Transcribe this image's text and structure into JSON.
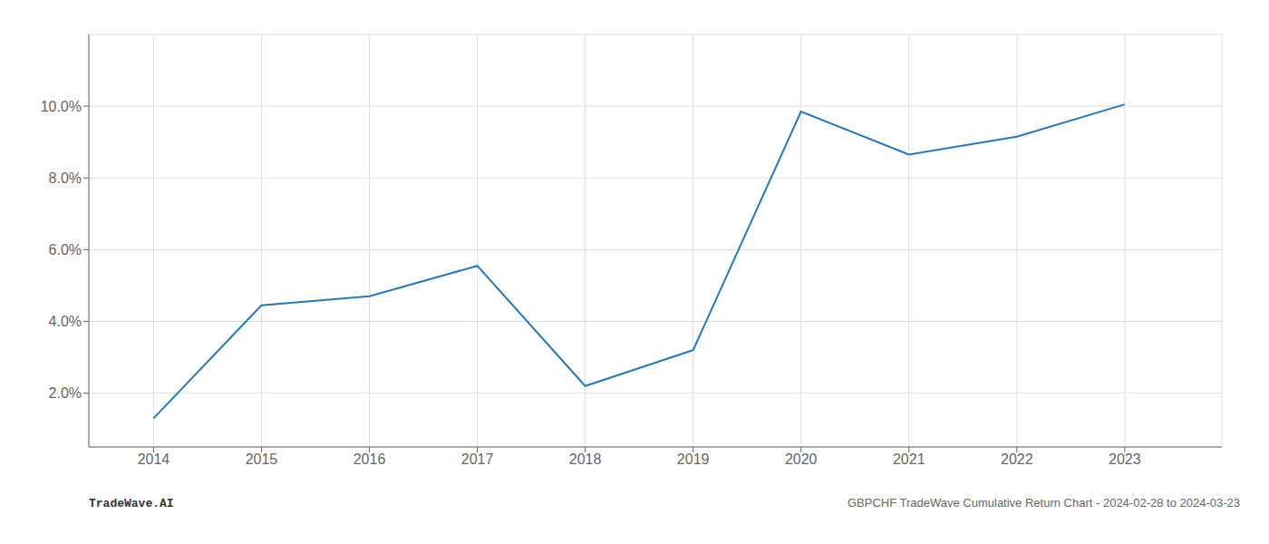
{
  "chart_data": {
    "type": "line",
    "x": [
      2014,
      2015,
      2016,
      2017,
      2018,
      2019,
      2020,
      2021,
      2022,
      2023
    ],
    "values": [
      1.3,
      4.45,
      4.7,
      5.55,
      2.2,
      3.2,
      9.85,
      8.65,
      9.15,
      10.05
    ],
    "color": "#2878b5",
    "xlim": [
      2013.4,
      2023.9
    ],
    "xticks": [
      2014,
      2015,
      2016,
      2017,
      2018,
      2019,
      2020,
      2021,
      2022,
      2023
    ],
    "ylim": [
      0.5,
      12.0
    ],
    "yticks": [
      {
        "value": 2.0,
        "label": "2.0%"
      },
      {
        "value": 4.0,
        "label": "4.0%"
      },
      {
        "value": 6.0,
        "label": "6.0%"
      },
      {
        "value": 8.0,
        "label": "8.0%"
      },
      {
        "value": 10.0,
        "label": "10.0%"
      }
    ],
    "grid": true,
    "annotations": [
      "TradeWave.AI",
      "GBPCHF TradeWave Cumulative Return Chart - 2024-02-28 to 2024-03-23"
    ]
  }
}
